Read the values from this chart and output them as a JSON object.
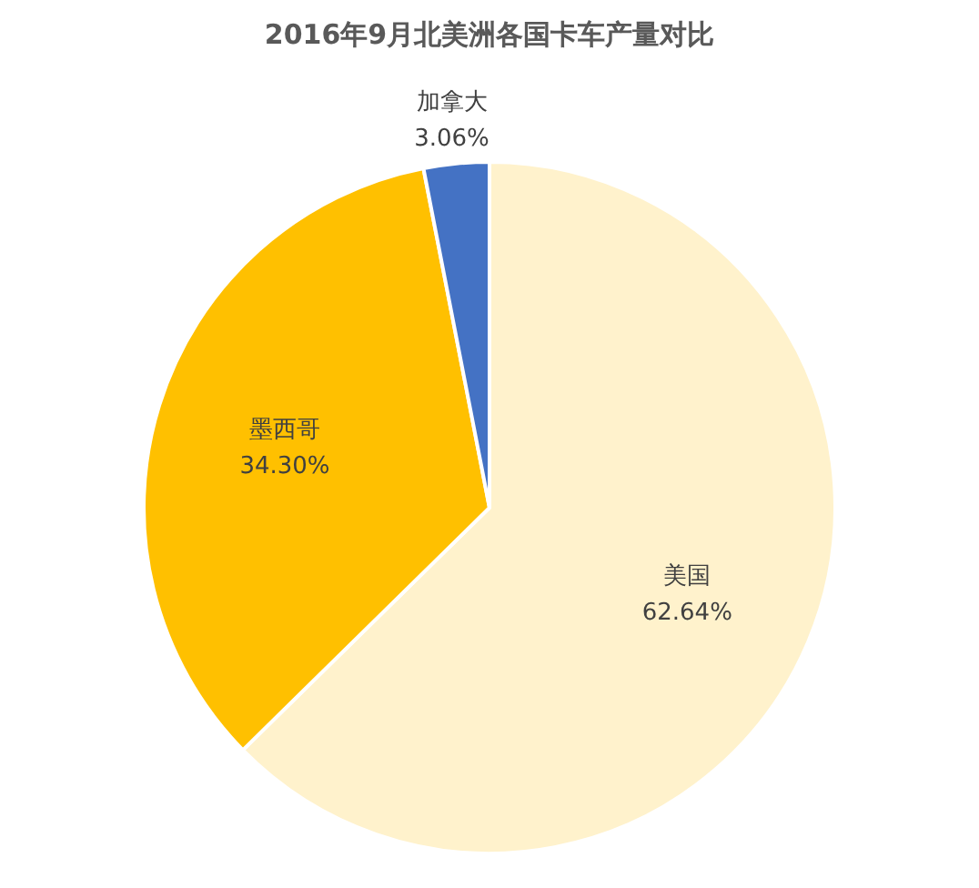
{
  "chart_data": {
    "type": "pie",
    "title": "2016年9月北美洲各国卡车产量对比",
    "categories": [
      "美国",
      "墨西哥",
      "加拿大"
    ],
    "values": [
      62.64,
      34.3,
      3.06
    ],
    "colors": [
      "#fff2cc",
      "#ffc000",
      "#4472c4"
    ],
    "value_labels": [
      "62.64%",
      "34.30%",
      "3.06%"
    ],
    "legend": false
  }
}
